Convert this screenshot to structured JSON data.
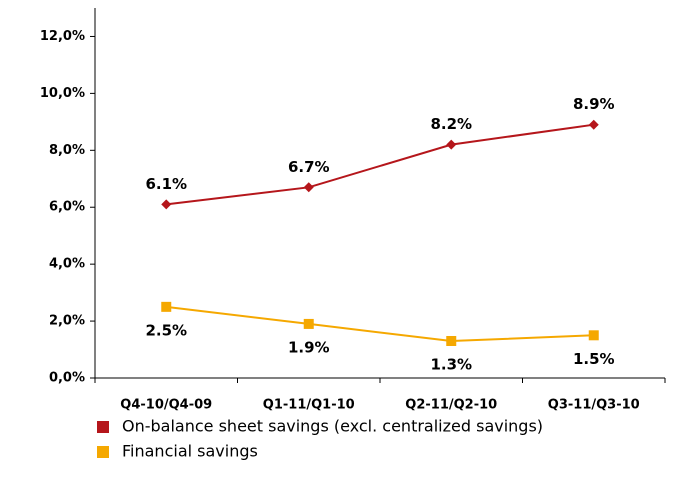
{
  "chart_data": {
    "type": "line",
    "categories": [
      "Q4-10/Q4-09",
      "Q1-11/Q1-10",
      "Q2-11/Q2-10",
      "Q3-11/Q3-10"
    ],
    "series": [
      {
        "name": "On-balance sheet savings (excl. centralized savings)",
        "color": "#b5161b",
        "marker": "diamond",
        "values": [
          6.1,
          6.7,
          8.2,
          8.9
        ],
        "value_labels": [
          "6.1%",
          "6.7%",
          "8.2%",
          "8.9%"
        ]
      },
      {
        "name": "Financial savings",
        "color": "#f5a800",
        "marker": "square",
        "values": [
          2.5,
          1.9,
          1.3,
          1.5
        ],
        "value_labels": [
          "2.5%",
          "1.9%",
          "1.3%",
          "1.5%"
        ]
      }
    ],
    "ylim": [
      0,
      13
    ],
    "yticks": [
      {
        "value": 0,
        "label": "0,0%"
      },
      {
        "value": 2,
        "label": "2,0%"
      },
      {
        "value": 4,
        "label": "4,0%"
      },
      {
        "value": 6,
        "label": "6,0%"
      },
      {
        "value": 8,
        "label": "8,0%"
      },
      {
        "value": 10,
        "label": "10,0%"
      },
      {
        "value": 12,
        "label": "12,0%"
      }
    ],
    "legend": "bottom"
  }
}
